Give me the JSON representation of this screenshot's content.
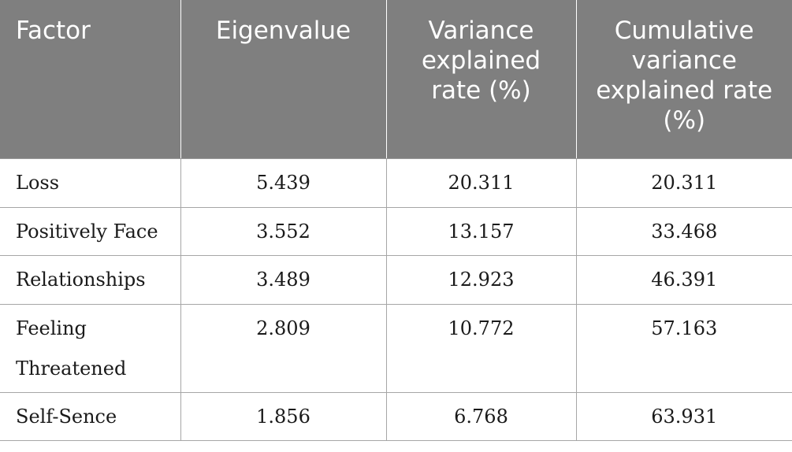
{
  "table": {
    "headers": [
      "Factor",
      "Eigenvalue",
      "Variance explained rate (%)",
      "Cumulative variance explained rate (%)"
    ],
    "rows": [
      [
        "Loss",
        "5.439",
        "20.311",
        "20.311"
      ],
      [
        "Positively Face",
        "3.552",
        "13.157",
        "33.468"
      ],
      [
        "Relationships",
        "3.489",
        "12.923",
        "46.391"
      ],
      [
        "Feeling Threatened",
        "2.809",
        "10.772",
        "57.163"
      ],
      [
        "Self-Sence",
        "1.856",
        "6.768",
        "63.931"
      ]
    ]
  },
  "colors": {
    "header_background": "#7f7f7f",
    "header_text": "#ffffff",
    "grid_line": "#a6a6a6"
  }
}
